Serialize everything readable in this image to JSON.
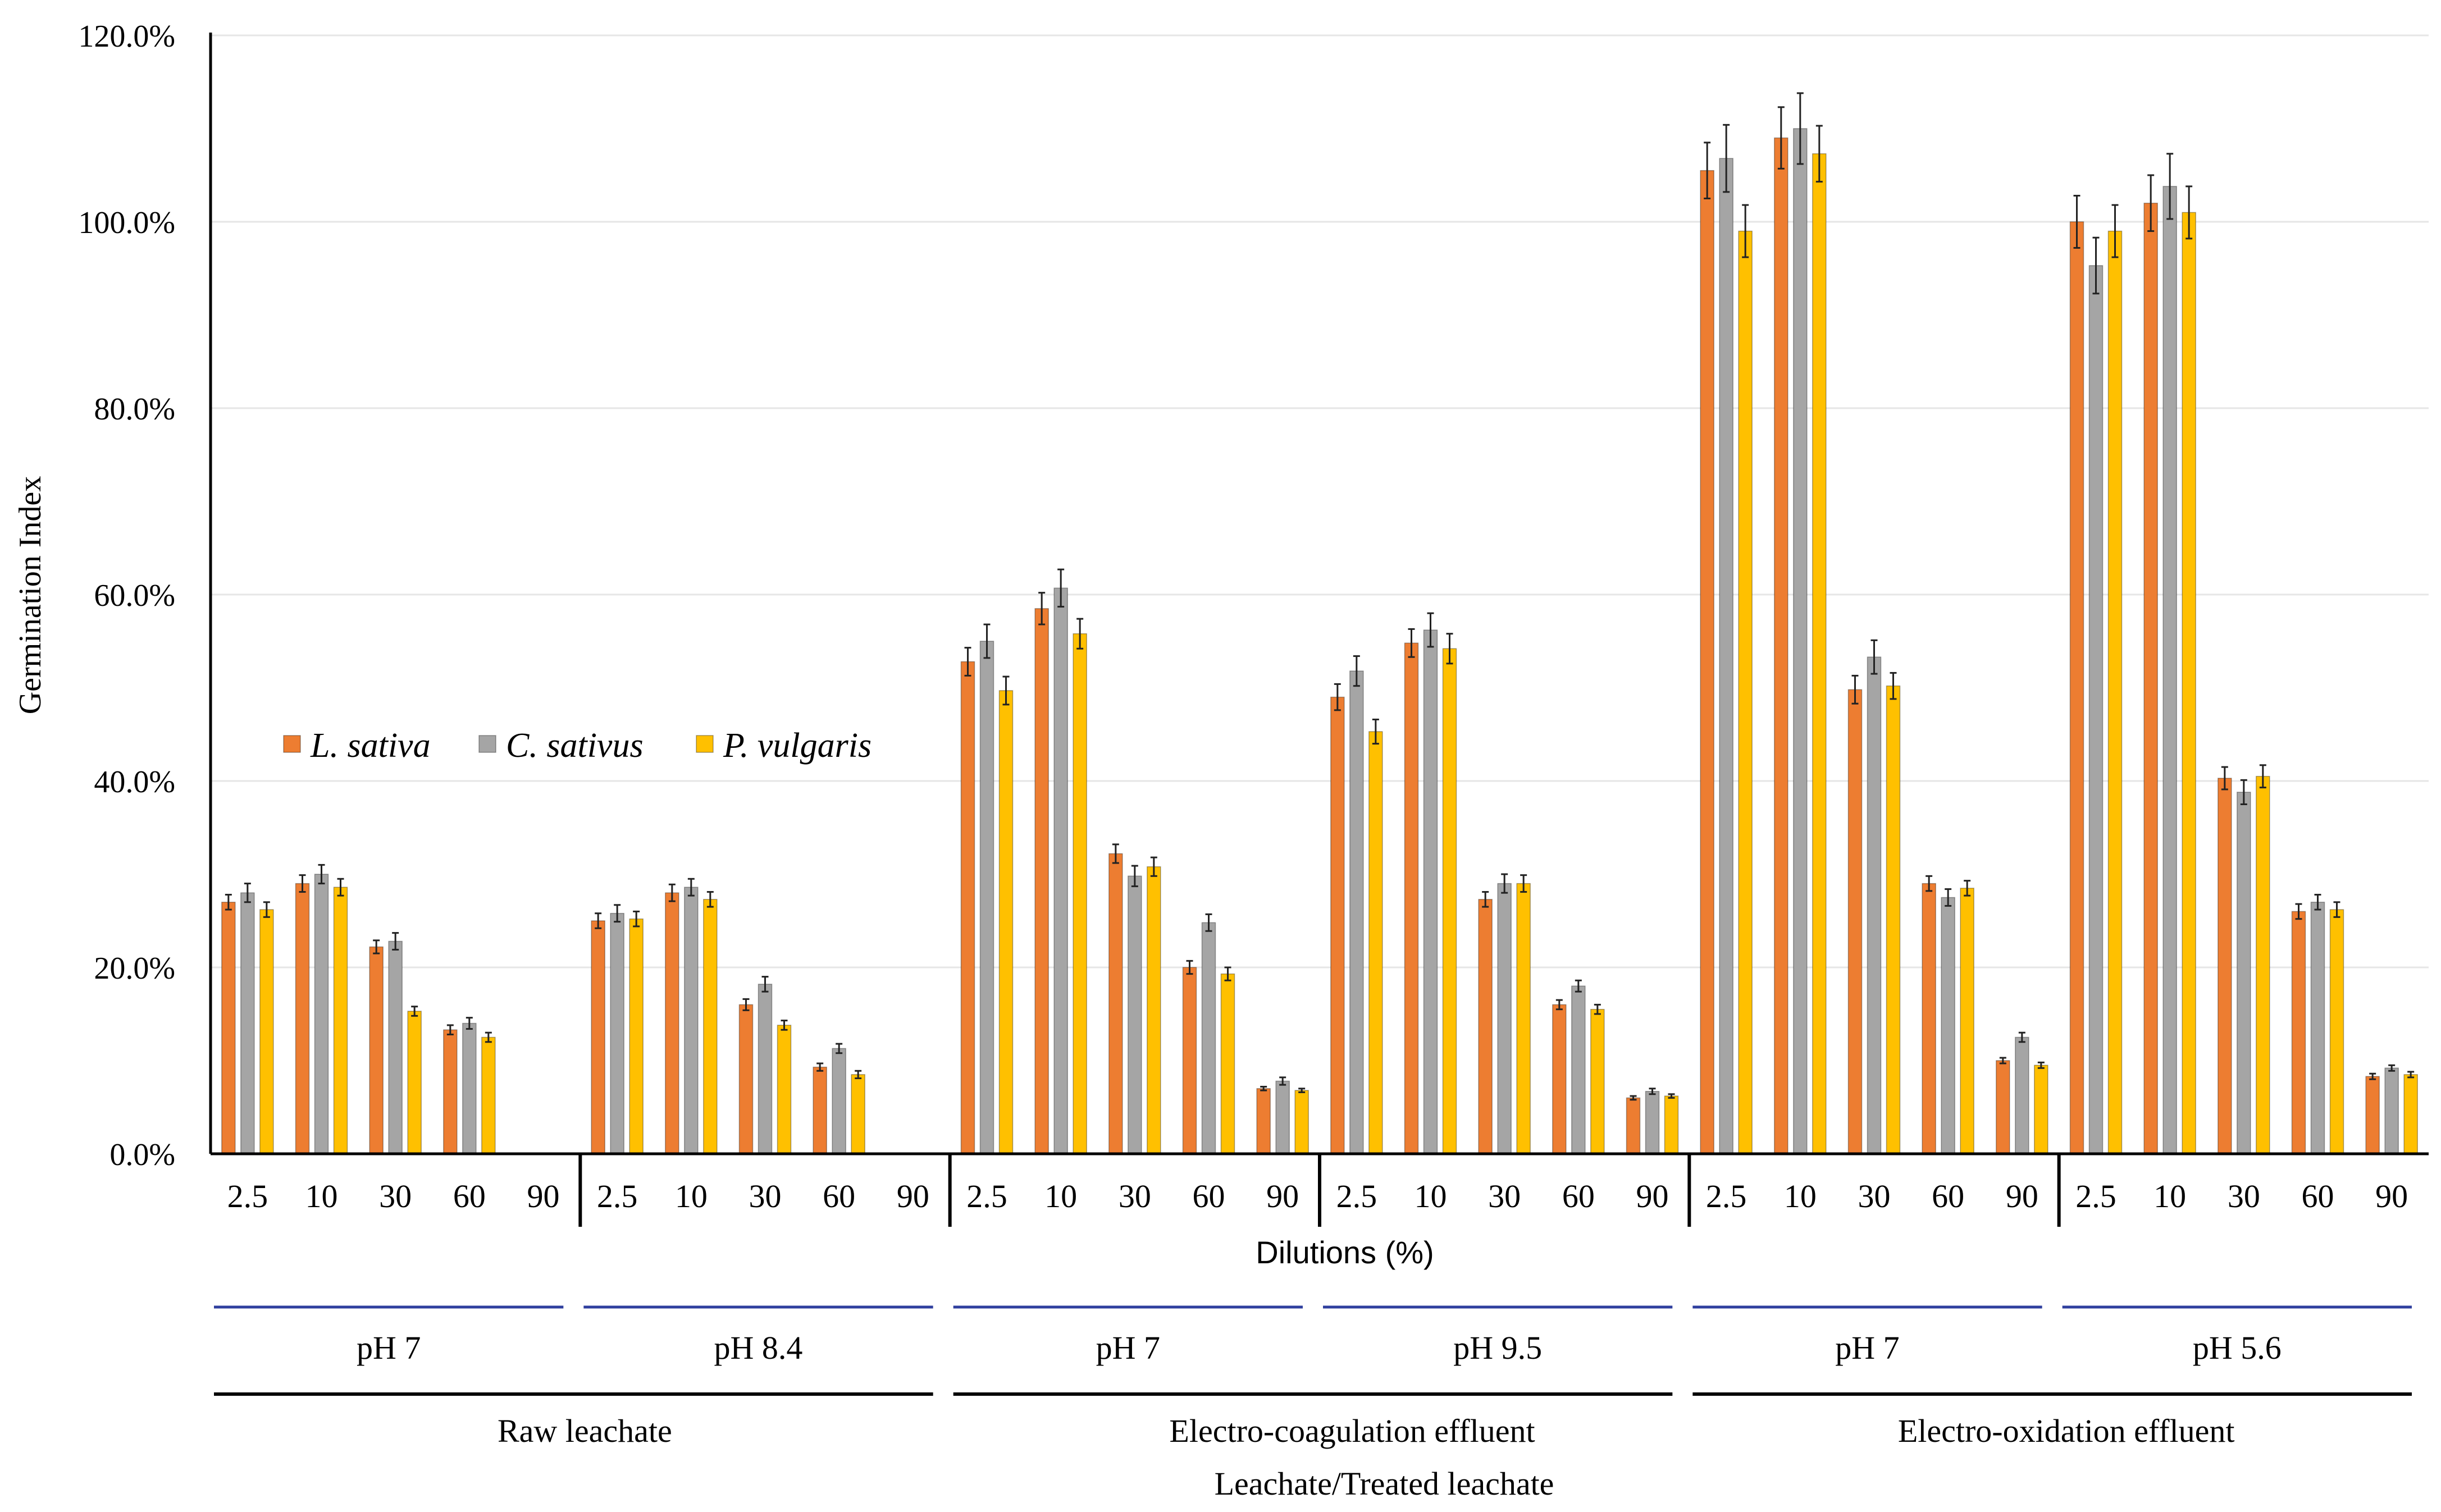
{
  "chart_data": {
    "type": "bar",
    "title": "",
    "ylabel": "Germination Index",
    "xlabel": "Dilutions (%)",
    "ylim": [
      0,
      120
    ],
    "y_ticks": [
      "0.0%",
      "20.0%",
      "40.0%",
      "60.0%",
      "80.0%",
      "100.0%",
      "120.0%"
    ],
    "y_tick_values": [
      0,
      20,
      40,
      60,
      80,
      100,
      120
    ],
    "grid": true,
    "legend_position": "middle-left",
    "colors": {
      "L. sativa": "#ed7d31",
      "C. sativus": "#a5a5a5",
      "P. vulgaris": "#ffc000",
      "bracket_blue": "#2f3f9e",
      "axis": "#000000",
      "gridline": "#e6e6e6"
    },
    "series": [
      {
        "name": "L. sativa",
        "italic": true
      },
      {
        "name": "C. sativus",
        "italic": true
      },
      {
        "name": "P. vulgaris",
        "italic": true
      }
    ],
    "dilutions": [
      "2.5",
      "10",
      "30",
      "60",
      "90"
    ],
    "groups": [
      {
        "ph": "pH  7",
        "treatment": "Raw leachate",
        "values": [
          [
            27.0,
            28.0,
            26.2
          ],
          [
            29.0,
            30.0,
            28.6
          ],
          [
            22.2,
            22.8,
            15.3
          ],
          [
            13.3,
            14.0,
            12.5
          ],
          [
            0,
            0,
            0
          ]
        ],
        "errors": [
          [
            0.8,
            1.0,
            0.8
          ],
          [
            0.9,
            1.0,
            0.9
          ],
          [
            0.7,
            0.9,
            0.5
          ],
          [
            0.5,
            0.6,
            0.5
          ],
          [
            0,
            0,
            0
          ]
        ]
      },
      {
        "ph": "pH  8.4",
        "treatment": "Raw leachate",
        "values": [
          [
            25.0,
            25.8,
            25.2
          ],
          [
            28.0,
            28.6,
            27.3
          ],
          [
            16.0,
            18.2,
            13.8
          ],
          [
            9.3,
            11.3,
            8.5
          ],
          [
            0,
            0,
            0
          ]
        ],
        "errors": [
          [
            0.8,
            0.9,
            0.8
          ],
          [
            0.9,
            0.9,
            0.8
          ],
          [
            0.6,
            0.8,
            0.5
          ],
          [
            0.4,
            0.5,
            0.4
          ],
          [
            0,
            0,
            0
          ]
        ]
      },
      {
        "ph": "pH  7",
        "treatment": "Electro-coagulation effluent",
        "values": [
          [
            52.8,
            55.0,
            49.7
          ],
          [
            58.5,
            60.7,
            55.8
          ],
          [
            32.2,
            29.8,
            30.8
          ],
          [
            20.0,
            24.8,
            19.3
          ],
          [
            7.0,
            7.8,
            6.8
          ]
        ],
        "errors": [
          [
            1.5,
            1.8,
            1.5
          ],
          [
            1.7,
            2.0,
            1.6
          ],
          [
            1.0,
            1.1,
            1.0
          ],
          [
            0.7,
            0.9,
            0.7
          ],
          [
            0.2,
            0.4,
            0.2
          ]
        ]
      },
      {
        "ph": "pH  9.5",
        "treatment": "Electro-coagulation effluent",
        "values": [
          [
            49.0,
            51.8,
            45.3
          ],
          [
            54.8,
            56.2,
            54.2
          ],
          [
            27.3,
            29.0,
            29.0
          ],
          [
            16.0,
            18.0,
            15.5
          ],
          [
            6.0,
            6.7,
            6.2
          ]
        ],
        "errors": [
          [
            1.4,
            1.6,
            1.3
          ],
          [
            1.5,
            1.8,
            1.6
          ],
          [
            0.8,
            1.0,
            0.9
          ],
          [
            0.5,
            0.6,
            0.5
          ],
          [
            0.2,
            0.3,
            0.2
          ]
        ]
      },
      {
        "ph": "pH  7",
        "treatment": "Electro-oxidation effluent",
        "values": [
          [
            105.5,
            106.8,
            99.0
          ],
          [
            109.0,
            110.0,
            107.3
          ],
          [
            49.8,
            53.3,
            50.2
          ],
          [
            29.0,
            27.5,
            28.5
          ],
          [
            10.0,
            12.5,
            9.5
          ]
        ],
        "errors": [
          [
            3.0,
            3.6,
            2.8
          ],
          [
            3.3,
            3.8,
            3.0
          ],
          [
            1.5,
            1.8,
            1.4
          ],
          [
            0.8,
            0.9,
            0.8
          ],
          [
            0.3,
            0.5,
            0.3
          ]
        ]
      },
      {
        "ph": "pH  5.6",
        "treatment": "Electro-oxidation effluent",
        "values": [
          [
            100.0,
            95.3,
            99.0
          ],
          [
            102.0,
            103.8,
            101.0
          ],
          [
            40.3,
            38.8,
            40.5
          ],
          [
            26.0,
            27.0,
            26.2
          ],
          [
            8.3,
            9.2,
            8.5
          ]
        ],
        "errors": [
          [
            2.8,
            3.0,
            2.8
          ],
          [
            3.0,
            3.5,
            2.8
          ],
          [
            1.2,
            1.3,
            1.2
          ],
          [
            0.8,
            0.8,
            0.8
          ],
          [
            0.3,
            0.3,
            0.3
          ]
        ]
      }
    ],
    "treatments": [
      "Raw leachate",
      "Electro-coagulation effluent",
      "Electro-oxidation effluent"
    ],
    "footer_label": "Leachate/Treated leachate"
  }
}
